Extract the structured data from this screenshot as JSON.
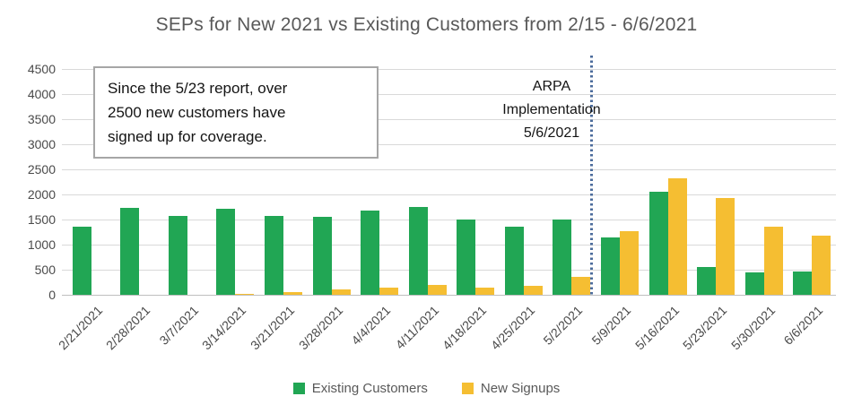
{
  "title": "SEPs for New 2021 vs Existing Customers from 2/15 - 6/6/2021",
  "annotation_box": {
    "text": "Since the 5/23 report, over\n2500 new customers have\nsigned up for coverage."
  },
  "event_marker": {
    "lines": [
      "ARPA",
      "Implementation",
      "5/6/2021"
    ],
    "line_color": "#4C6C9C"
  },
  "colors": {
    "existing": "#21A654",
    "new_signups": "#F5BE32",
    "gridline": "#D9D9D9",
    "axis": "#BFBFBF",
    "text": "#595959"
  },
  "chart_data": {
    "type": "bar",
    "title": "SEPs for New 2021 vs Existing Customers from 2/15 - 6/6/2021",
    "categories": [
      "2/21/2021",
      "2/28/2021",
      "3/7/2021",
      "3/14/2021",
      "3/21/2021",
      "3/28/2021",
      "4/4/2021",
      "4/11/2021",
      "4/18/2021",
      "4/25/2021",
      "5/2/2021",
      "5/9/2021",
      "5/16/2021",
      "5/23/2021",
      "5/30/2021",
      "6/6/2021"
    ],
    "series": [
      {
        "name": "Existing Customers",
        "color": "#21A654",
        "values": [
          1350,
          1730,
          1570,
          1710,
          1570,
          1550,
          1670,
          1750,
          1500,
          1350,
          1500,
          1150,
          2050,
          550,
          450,
          460
        ]
      },
      {
        "name": "New Signups",
        "color": "#F5BE32",
        "values": [
          0,
          0,
          0,
          20,
          60,
          100,
          150,
          200,
          140,
          180,
          360,
          1270,
          2320,
          1920,
          1360,
          1180
        ]
      }
    ],
    "xlabel": "",
    "ylabel": "",
    "ylim": [
      0,
      4500
    ],
    "ytick_step": 500,
    "grid": true,
    "legend_position": "bottom",
    "annotations": [
      "Since the 5/23 report, over 2500 new customers have signed up for coverage.",
      "ARPA Implementation 5/6/2021 (vertical dotted divider between 5/2 and 5/9)"
    ]
  }
}
